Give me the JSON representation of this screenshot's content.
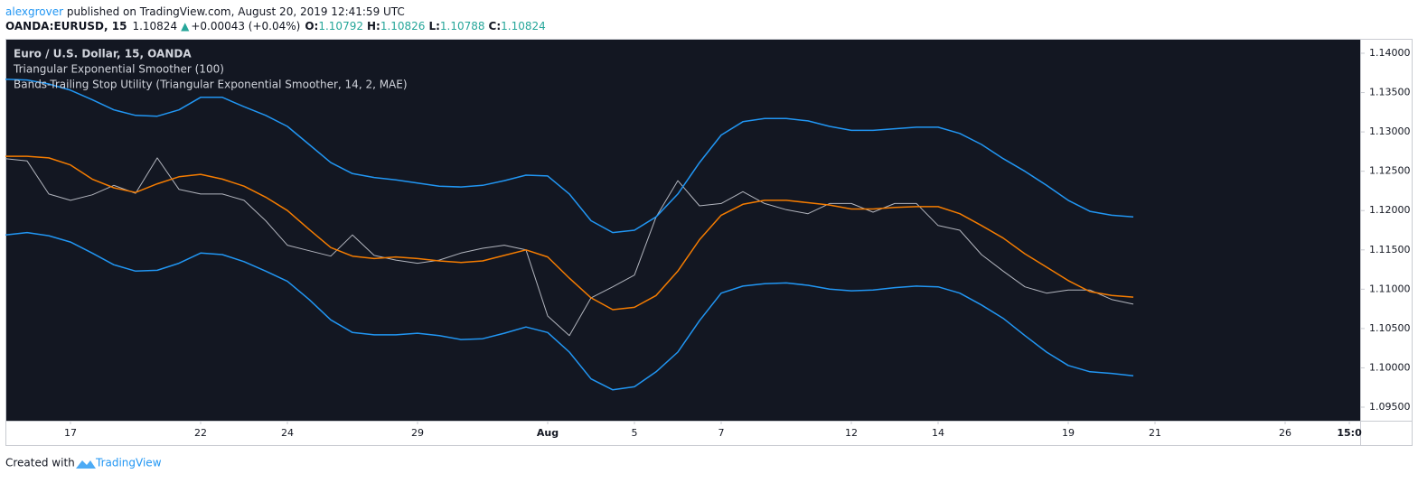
{
  "header": {
    "author": "alexgrover",
    "published": " published on TradingView.com, August 20, 2019 12:41:59 UTC",
    "symbol": "OANDA:EURUSD, 15",
    "last": "1.10824",
    "arrow": "▲",
    "change": "+0.00043 (+0.04%)",
    "open": [
      "O:",
      "1.10792"
    ],
    "high": [
      "H:",
      "1.10826"
    ],
    "low": [
      "L:",
      "1.10788"
    ],
    "close": [
      "C:",
      "1.10824"
    ]
  },
  "chart_data": {
    "type": "line",
    "title": "Euro / U.S. Dollar, 15, OANDA",
    "legend": [
      "Triangular Exponential Smoother (100)",
      "Bands-Trailing Stop Utility (Triangular Exponential Smoother, 14, 2, MAE)"
    ],
    "x": [
      -1.5,
      -1,
      -0.5,
      0,
      0.5,
      1,
      1.5,
      2,
      2.5,
      3,
      3.5,
      4,
      4.5,
      5,
      5.5,
      6,
      6.5,
      7,
      7.5,
      8,
      8.5,
      9,
      9.5,
      10,
      10.5,
      11,
      11.5,
      12,
      12.5,
      13,
      13.5,
      14,
      14.5,
      15,
      15.5,
      16,
      16.5,
      17,
      17.5,
      18,
      18.5,
      19,
      19.5,
      20,
      20.5,
      21,
      21.5,
      22,
      22.5,
      23,
      23.5,
      24,
      24.5
    ],
    "series": [
      {
        "color": "#b2b5be",
        "values": [
          1.1266,
          1.1263,
          1.1221,
          1.1213,
          1.122,
          1.1232,
          1.1222,
          1.1267,
          1.1227,
          1.1221,
          1.1221,
          1.1213,
          1.1187,
          1.1156,
          1.1149,
          1.1142,
          1.1169,
          1.1143,
          1.1137,
          1.1133,
          1.1137,
          1.1146,
          1.1152,
          1.1156,
          1.115,
          1.1066,
          1.1041,
          1.1089,
          1.1103,
          1.1118,
          1.1192,
          1.1238,
          1.1206,
          1.1209,
          1.1224,
          1.1209,
          1.1201,
          1.1196,
          1.1209,
          1.1209,
          1.1198,
          1.1209,
          1.1209,
          1.1181,
          1.1175,
          1.1144,
          1.1123,
          1.1103,
          1.1095,
          1.1099,
          1.1099,
          1.1087,
          1.1081
        ]
      },
      {
        "color": "#f57c00",
        "values": [
          1.1269,
          1.1269,
          1.1267,
          1.1258,
          1.124,
          1.1229,
          1.1223,
          1.1234,
          1.1243,
          1.1246,
          1.124,
          1.1231,
          1.1217,
          1.12,
          1.1176,
          1.1153,
          1.1142,
          1.1139,
          1.1141,
          1.1139,
          1.1136,
          1.1134,
          1.1136,
          1.1143,
          1.115,
          1.1141,
          1.1114,
          1.1089,
          1.1074,
          1.1077,
          1.1092,
          1.1123,
          1.1163,
          1.1194,
          1.1208,
          1.1213,
          1.1213,
          1.121,
          1.1207,
          1.1202,
          1.1202,
          1.1204,
          1.1205,
          1.1205,
          1.1196,
          1.1181,
          1.1165,
          1.1145,
          1.1128,
          1.1111,
          1.1097,
          1.1092,
          1.109
        ]
      },
      {
        "color": "#2196f3",
        "values": [
          1.1367,
          1.1366,
          1.1361,
          1.1353,
          1.1341,
          1.1328,
          1.1321,
          1.132,
          1.1328,
          1.1344,
          1.1344,
          1.1332,
          1.1321,
          1.1307,
          1.1284,
          1.1261,
          1.1247,
          1.1242,
          1.1239,
          1.1235,
          1.1231,
          1.123,
          1.1232,
          1.1238,
          1.1245,
          1.1244,
          1.1221,
          1.1187,
          1.1172,
          1.1175,
          1.1192,
          1.1221,
          1.1261,
          1.1296,
          1.1313,
          1.1317,
          1.1317,
          1.1314,
          1.1307,
          1.1302,
          1.1302,
          1.1304,
          1.1306,
          1.1306,
          1.1298,
          1.1284,
          1.1266,
          1.125,
          1.1232,
          1.1213,
          1.1199,
          1.1194,
          1.1192
        ]
      },
      {
        "color": "#2196f3",
        "values": [
          1.1169,
          1.1172,
          1.1168,
          1.116,
          1.1146,
          1.1131,
          1.1123,
          1.1124,
          1.1133,
          1.1146,
          1.1144,
          1.1135,
          1.1123,
          1.111,
          1.1087,
          1.1061,
          1.1045,
          1.1042,
          1.1042,
          1.1044,
          1.1041,
          1.1036,
          1.1037,
          1.1044,
          1.1052,
          1.1045,
          1.102,
          1.0986,
          1.0972,
          1.0976,
          1.0995,
          1.102,
          1.106,
          1.1095,
          1.1104,
          1.1107,
          1.1108,
          1.1105,
          1.11,
          1.1098,
          1.1099,
          1.1102,
          1.1104,
          1.1103,
          1.1095,
          1.108,
          1.1063,
          1.1041,
          1.102,
          1.1003,
          1.0995,
          1.0993,
          1.099
        ]
      }
    ],
    "xlim": [
      -1.479,
      29.729
    ],
    "xticks": [
      {
        "value": 0,
        "label": "17"
      },
      {
        "value": 3,
        "label": "22"
      },
      {
        "value": 5,
        "label": "24"
      },
      {
        "value": 8,
        "label": "29"
      },
      {
        "value": 11,
        "label": "Aug"
      },
      {
        "value": 13,
        "label": "5"
      },
      {
        "value": 15,
        "label": "7"
      },
      {
        "value": 18,
        "label": "12"
      },
      {
        "value": 20,
        "label": "14"
      },
      {
        "value": 23,
        "label": "19"
      },
      {
        "value": 25,
        "label": "21"
      },
      {
        "value": 28,
        "label": "26"
      },
      {
        "value": 29.48,
        "label": "15:0"
      }
    ],
    "ylim": [
      1.09328,
      1.14172
    ],
    "yticks": [
      {
        "value": 1.14,
        "label": "1.14000"
      },
      {
        "value": 1.135,
        "label": "1.13500"
      },
      {
        "value": 1.13,
        "label": "1.13000"
      },
      {
        "value": 1.125,
        "label": "1.12500"
      },
      {
        "value": 1.12,
        "label": "1.12000"
      },
      {
        "value": 1.115,
        "label": "1.11500"
      },
      {
        "value": 1.11,
        "label": "1.11000"
      },
      {
        "value": 1.105,
        "label": "1.10500"
      },
      {
        "value": 1.1,
        "label": "1.10000"
      },
      {
        "value": 1.095,
        "label": "1.09500"
      }
    ]
  },
  "footer": {
    "created": "Created with",
    "brand": "TradingView"
  }
}
